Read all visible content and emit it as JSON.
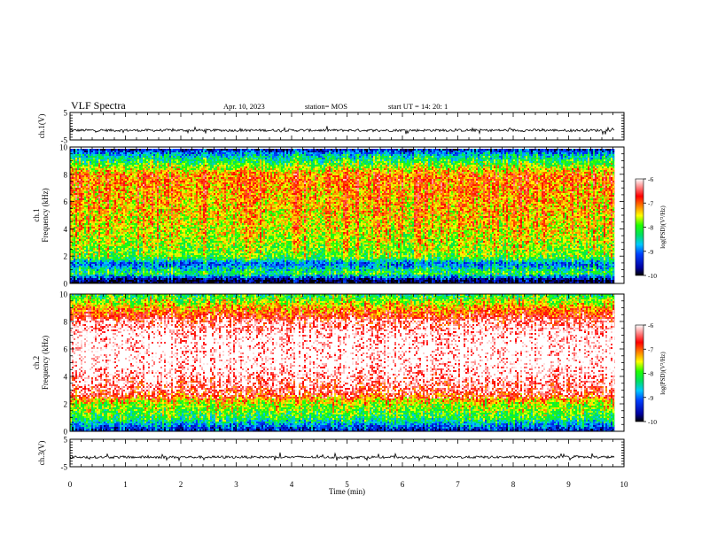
{
  "header": {
    "title": "VLF Spectra",
    "date": "Apr. 10, 2023",
    "station": "station= MOS",
    "start": "start  UT  =   14: 20: 1"
  },
  "chart_data": [
    {
      "type": "line",
      "panel": "ch1-waveform",
      "ylabel": "ch.1(V)",
      "ylim": [
        -5,
        5
      ],
      "y_ticks": [
        "5",
        "-5"
      ],
      "xlim": [
        0,
        10
      ],
      "series": [
        {
          "values_description_level": -1.5
        }
      ]
    },
    {
      "type": "heatmap",
      "panel": "ch1-spectrogram",
      "ylabel": "ch.1\nFrequency (kHz)",
      "ylim": [
        0,
        10
      ],
      "y_ticks": [
        "0",
        "2",
        "4",
        "6",
        "8",
        "10"
      ],
      "xlim": [
        0,
        10
      ],
      "colorbar": {
        "label": "log(PSD)(V²/Hz)",
        "ticks": [
          "-6",
          "-7",
          "-8",
          "-9",
          "-10"
        ],
        "range": [
          -10,
          -6
        ]
      },
      "profile": [
        {
          "f": 0.3,
          "level": -10
        },
        {
          "f": 0.8,
          "level": -8.2
        },
        {
          "f": 1.5,
          "level": -9.2
        },
        {
          "f": 2.0,
          "level": -8.0
        },
        {
          "f": 4.0,
          "level": -7.6
        },
        {
          "f": 6.0,
          "level": -7.4
        },
        {
          "f": 8.0,
          "level": -7.2
        },
        {
          "f": 9.5,
          "level": -8.8
        },
        {
          "f": 10.0,
          "level": -10
        }
      ]
    },
    {
      "type": "heatmap",
      "panel": "ch2-spectrogram",
      "ylabel": "ch.2\nFrequency (kHz)",
      "ylim": [
        0,
        10
      ],
      "y_ticks": [
        "0",
        "2",
        "4",
        "6",
        "8",
        "10"
      ],
      "xlim": [
        0,
        10
      ],
      "colorbar": {
        "label": "log(PSD)(V²/Hz)",
        "ticks": [
          "-6",
          "-7",
          "-8",
          "-9",
          "-10"
        ],
        "range": [
          -10,
          -6
        ]
      },
      "profile": [
        {
          "f": 0.2,
          "level": -9.5
        },
        {
          "f": 1.0,
          "level": -8.3
        },
        {
          "f": 2.0,
          "level": -7.8
        },
        {
          "f": 3.0,
          "level": -6.8
        },
        {
          "f": 5.0,
          "level": -6.1
        },
        {
          "f": 7.0,
          "level": -6.2
        },
        {
          "f": 8.5,
          "level": -6.9
        },
        {
          "f": 9.5,
          "level": -7.8
        },
        {
          "f": 10.0,
          "level": -8.3
        }
      ]
    },
    {
      "type": "line",
      "panel": "ch3-waveform",
      "ylabel": "ch.3(V)",
      "ylim": [
        -5,
        5
      ],
      "y_ticks": [
        "5",
        "-5"
      ],
      "xlim": [
        0,
        10
      ],
      "series": [
        {
          "values_description_level": -1.5
        }
      ]
    }
  ],
  "x_axis": {
    "label": "Time  (min)",
    "ticks": [
      "0",
      "1",
      "2",
      "3",
      "4",
      "5",
      "6",
      "7",
      "8",
      "9",
      "10"
    ],
    "data_end": 9.83
  }
}
